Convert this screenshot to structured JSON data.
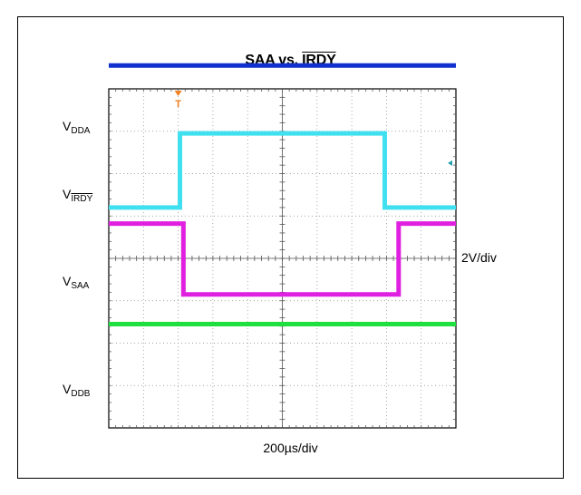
{
  "chart_data": {
    "type": "line",
    "title_prefix": "SAA vs. ",
    "title_signal": "IRDY",
    "xlabel": "200µs/div",
    "ylabel": "2V/div",
    "x_divisions": 10,
    "y_divisions": 8,
    "x_unit": "div",
    "y_unit": "div",
    "trigger_marker": {
      "x": 2.0,
      "label": "T",
      "color": "#f08020"
    },
    "ref_marker": {
      "y": 6.25,
      "color": "#20a0b0"
    },
    "series": [
      {
        "name_main": "V",
        "name_sub": "DDA",
        "name_sub_overline": false,
        "color": "#1030d0",
        "points": [
          [
            0,
            8.55
          ],
          [
            10,
            8.55
          ]
        ]
      },
      {
        "name_main": "V",
        "name_sub": "IRDY",
        "name_sub_overline": true,
        "color": "#40e0f0",
        "points": [
          [
            0,
            5.2
          ],
          [
            2.05,
            5.2
          ],
          [
            2.05,
            6.95
          ],
          [
            7.95,
            6.95
          ],
          [
            7.95,
            5.2
          ],
          [
            10,
            5.2
          ]
        ]
      },
      {
        "name_main": "V",
        "name_sub": "SAA",
        "name_sub_overline": false,
        "color": "#e020e0",
        "points": [
          [
            0,
            4.82
          ],
          [
            2.15,
            4.82
          ],
          [
            2.15,
            3.15
          ],
          [
            8.35,
            3.15
          ],
          [
            8.35,
            4.82
          ],
          [
            10,
            4.82
          ]
        ]
      },
      {
        "name_main": "V",
        "name_sub": "DDB",
        "name_sub_overline": false,
        "color": "#20e040",
        "points": [
          [
            0,
            2.45
          ],
          [
            10,
            2.45
          ]
        ]
      }
    ],
    "series_label_y": [
      7.1,
      5.5,
      3.45,
      0.9
    ]
  }
}
